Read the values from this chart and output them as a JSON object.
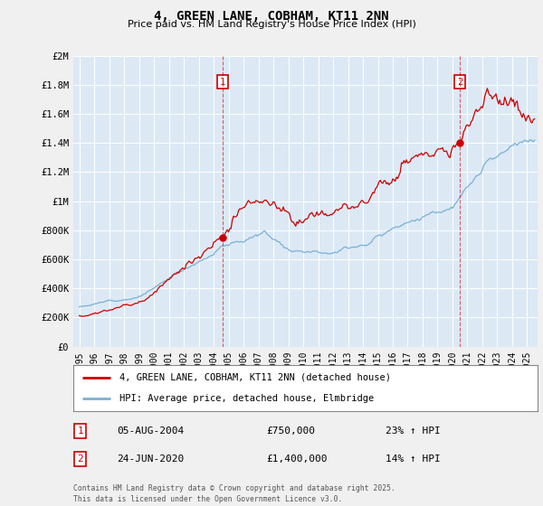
{
  "title": "4, GREEN LANE, COBHAM, KT11 2NN",
  "subtitle": "Price paid vs. HM Land Registry's House Price Index (HPI)",
  "ylim": [
    0,
    2000000
  ],
  "yticks": [
    0,
    200000,
    400000,
    600000,
    800000,
    1000000,
    1200000,
    1400000,
    1600000,
    1800000,
    2000000
  ],
  "ytick_labels": [
    "£0",
    "£200K",
    "£400K",
    "£600K",
    "£800K",
    "£1M",
    "£1.2M",
    "£1.4M",
    "£1.6M",
    "£1.8M",
    "£2M"
  ],
  "xlim_start": 1994.6,
  "xlim_end": 2025.7,
  "background_color": "#f0f0f0",
  "plot_bg_color": "#dce9f5",
  "grid_color": "#ffffff",
  "red_line_color": "#cc0000",
  "blue_line_color": "#7ab0d4",
  "marker1_x": 2004.59,
  "marker1_y": 750000,
  "marker2_x": 2020.48,
  "marker2_y": 1400000,
  "legend_line1": "4, GREEN LANE, COBHAM, KT11 2NN (detached house)",
  "legend_line2": "HPI: Average price, detached house, Elmbridge",
  "annotation1_date": "05-AUG-2004",
  "annotation1_price": "£750,000",
  "annotation1_hpi": "23% ↑ HPI",
  "annotation2_date": "24-JUN-2020",
  "annotation2_price": "£1,400,000",
  "annotation2_hpi": "14% ↑ HPI",
  "footer": "Contains HM Land Registry data © Crown copyright and database right 2025.\nThis data is licensed under the Open Government Licence v3.0.",
  "title_fontsize": 10,
  "subtitle_fontsize": 8
}
